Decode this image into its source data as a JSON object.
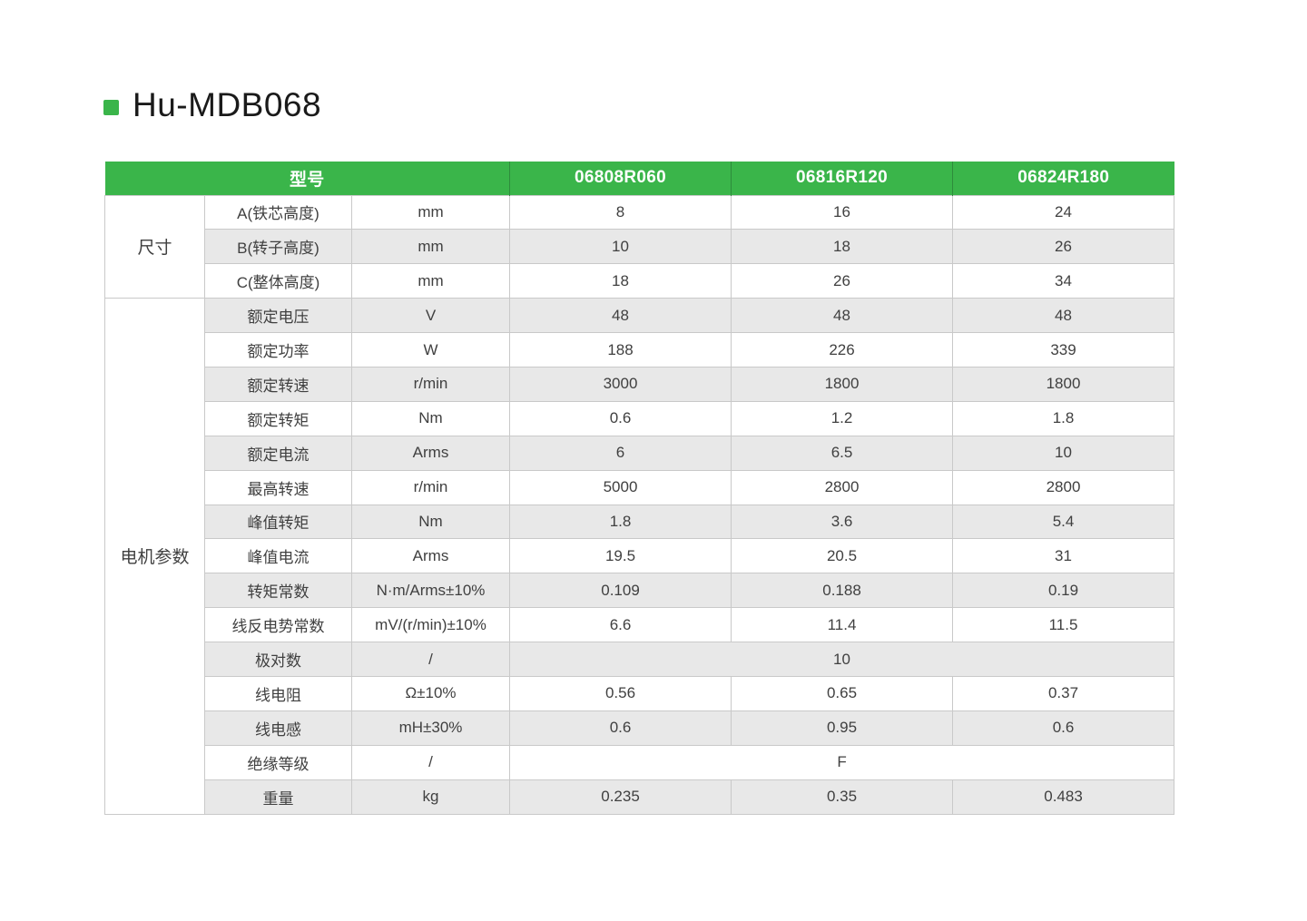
{
  "page": {
    "title": "Hu-MDB068"
  },
  "colors": {
    "accent_green": "#3AB54A",
    "stripe_gray": "#E8E8E8",
    "border_gray": "#C9C9C9"
  },
  "icons": {
    "title_bullet": "green-square"
  },
  "table": {
    "header": {
      "model_label": "型号",
      "models": [
        "06808R060",
        "06816R120",
        "06824R180"
      ]
    },
    "groups": [
      {
        "id": "dimensions",
        "label": "尺寸",
        "rows": [
          {
            "param": "A(铁芯高度)",
            "unit": "mm",
            "values": [
              "8",
              "16",
              "24"
            ]
          },
          {
            "param": "B(转子高度)",
            "unit": "mm",
            "values": [
              "10",
              "18",
              "26"
            ]
          },
          {
            "param": "C(整体高度)",
            "unit": "mm",
            "values": [
              "18",
              "26",
              "34"
            ]
          }
        ]
      },
      {
        "id": "motor-parameters",
        "label": "电机参数",
        "rows": [
          {
            "param": "额定电压",
            "unit": "V",
            "values": [
              "48",
              "48",
              "48"
            ]
          },
          {
            "param": "额定功率",
            "unit": "W",
            "values": [
              "188",
              "226",
              "339"
            ]
          },
          {
            "param": "额定转速",
            "unit": "r/min",
            "values": [
              "3000",
              "1800",
              "1800"
            ]
          },
          {
            "param": "额定转矩",
            "unit": "Nm",
            "values": [
              "0.6",
              "1.2",
              "1.8"
            ]
          },
          {
            "param": "额定电流",
            "unit": "Arms",
            "values": [
              "6",
              "6.5",
              "10"
            ]
          },
          {
            "param": "最高转速",
            "unit": "r/min",
            "values": [
              "5000",
              "2800",
              "2800"
            ]
          },
          {
            "param": "峰值转矩",
            "unit": "Nm",
            "values": [
              "1.8",
              "3.6",
              "5.4"
            ]
          },
          {
            "param": "峰值电流",
            "unit": "Arms",
            "values": [
              "19.5",
              "20.5",
              "31"
            ]
          },
          {
            "param": "转矩常数",
            "unit": "N·m/Arms±10%",
            "values": [
              "0.109",
              "0.188",
              "0.19"
            ]
          },
          {
            "param": "线反电势常数",
            "unit": "mV/(r/min)±10%",
            "values": [
              "6.6",
              "11.4",
              "11.5"
            ]
          },
          {
            "param": "极对数",
            "unit": "/",
            "merged": "10"
          },
          {
            "param": "线电阻",
            "unit": "Ω±10%",
            "values": [
              "0.56",
              "0.65",
              "0.37"
            ]
          },
          {
            "param": "线电感",
            "unit": "mH±30%",
            "values": [
              "0.6",
              "0.95",
              "0.6"
            ]
          },
          {
            "param": "绝缘等级",
            "unit": "/",
            "merged": "F"
          },
          {
            "param": "重量",
            "unit": "kg",
            "values": [
              "0.235",
              "0.35",
              "0.483"
            ]
          }
        ]
      }
    ]
  }
}
